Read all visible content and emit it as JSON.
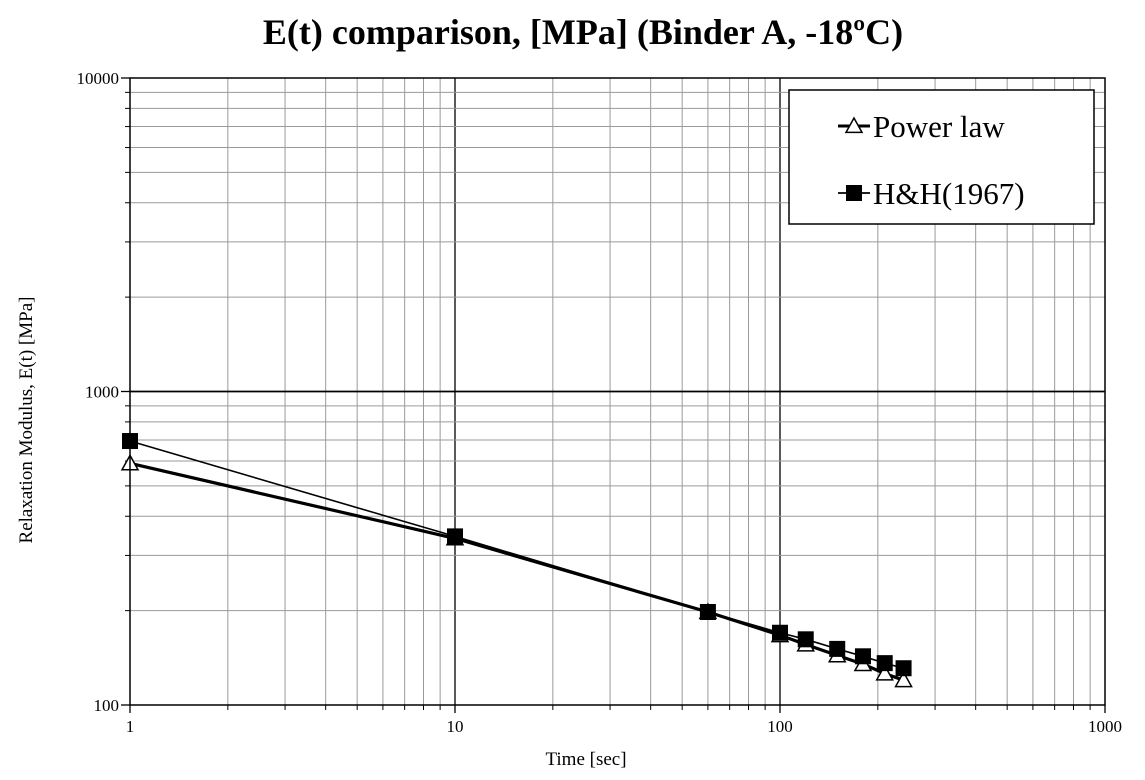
{
  "chart_data": {
    "type": "line",
    "title": "E(t) comparison, [MPa] (Binder A, -18ºC)",
    "xlabel": "Time [sec]",
    "ylabel": "Relaxation Modulus, E(t) [MPa]",
    "xscale": "log",
    "yscale": "log",
    "xlim": [
      1,
      1000
    ],
    "ylim": [
      100,
      10000
    ],
    "x_ticks": [
      {
        "value": 1,
        "label": "1"
      },
      {
        "value": 10,
        "label": "10"
      },
      {
        "value": 100,
        "label": "100"
      },
      {
        "value": 1000,
        "label": "1000"
      }
    ],
    "y_ticks": [
      {
        "value": 100,
        "label": "100"
      },
      {
        "value": 1000,
        "label": "1000"
      },
      {
        "value": 10000,
        "label": "10000"
      }
    ],
    "grid": true,
    "legend_position": "top-right",
    "series": [
      {
        "name": "Power law",
        "marker": "open-triangle",
        "x": [
          1,
          10,
          60,
          100,
          120,
          150,
          180,
          210,
          240
        ],
        "y": [
          590,
          340,
          198,
          167,
          156,
          144,
          135,
          126,
          120
        ]
      },
      {
        "name": "H&H(1967)",
        "marker": "filled-square",
        "x": [
          1,
          10,
          60,
          100,
          120,
          150,
          180,
          210,
          240
        ],
        "y": [
          695,
          345,
          198,
          170,
          162,
          151,
          143,
          136,
          131
        ]
      }
    ]
  }
}
